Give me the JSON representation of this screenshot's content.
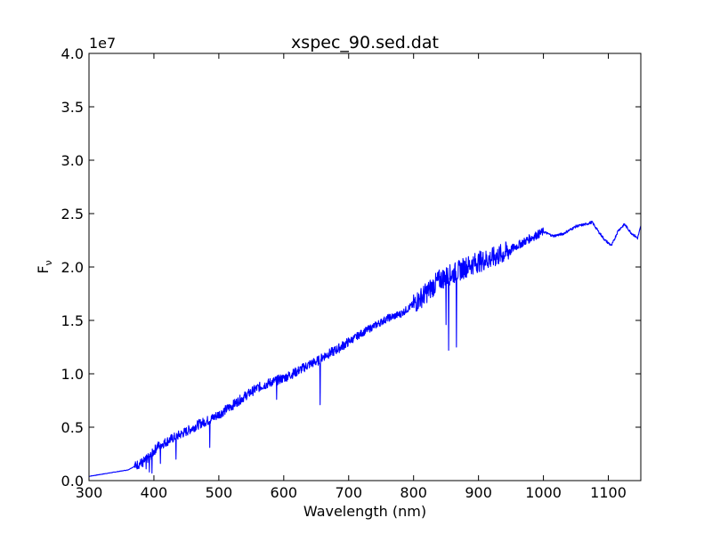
{
  "chart_data": {
    "type": "line",
    "title": "xspec_90.sed.dat",
    "xlabel": "Wavelength (nm)",
    "ylabel": "F",
    "ylabel_subscript": "ν",
    "xlim": [
      300,
      1150
    ],
    "ylim": [
      0,
      40000000
    ],
    "y_offset_label": "1e7",
    "x_ticks": [
      300,
      400,
      500,
      600,
      700,
      800,
      900,
      1000,
      1100
    ],
    "y_ticks": [
      0,
      5000000,
      10000000,
      15000000,
      20000000,
      25000000,
      30000000,
      35000000,
      40000000
    ],
    "y_tick_labels": [
      "0.0",
      "0.5",
      "1.0",
      "1.5",
      "2.0",
      "2.5",
      "3.0",
      "3.5",
      "4.0"
    ],
    "grid": false,
    "line_color": "#0000ff",
    "series": [
      {
        "x": [
          300,
          320,
          340,
          360,
          375,
          385,
          395,
          405,
          415,
          430,
          450,
          470,
          486,
          500,
          520,
          540,
          560,
          580,
          600,
          620,
          640,
          656,
          660,
          680,
          700,
          720,
          740,
          760,
          780,
          800,
          820,
          840,
          854,
          866,
          880,
          900,
          920,
          940,
          960,
          980,
          1000,
          1015,
          1030,
          1050,
          1065,
          1075,
          1085,
          1095,
          1105,
          1115,
          1125,
          1135,
          1145,
          1150
        ],
        "y": [
          400000,
          600000,
          800000,
          1000000,
          1500000,
          1800000,
          2300000,
          3200000,
          3500000,
          4000000,
          4600000,
          5300000,
          5700000,
          6200000,
          7000000,
          7900000,
          8700000,
          9200000,
          9600000,
          10200000,
          10900000,
          11300000,
          11600000,
          12200000,
          13000000,
          13800000,
          14500000,
          15200000,
          15600000,
          16500000,
          17600000,
          18800000,
          19200000,
          19500000,
          20000000,
          20500000,
          20800000,
          21300000,
          22000000,
          22700000,
          23300000,
          22900000,
          23100000,
          23800000,
          24000000,
          24200000,
          23300000,
          22500000,
          22000000,
          23400000,
          24000000,
          23200000,
          22700000,
          23800000
        ]
      }
    ],
    "dips": [
      {
        "x": 383,
        "y": 1300000
      },
      {
        "x": 388,
        "y": 1100000
      },
      {
        "x": 393,
        "y": 800000
      },
      {
        "x": 397,
        "y": 700000
      },
      {
        "x": 410,
        "y": 1600000
      },
      {
        "x": 434,
        "y": 2000000
      },
      {
        "x": 486,
        "y": 3100000
      },
      {
        "x": 589,
        "y": 7600000
      },
      {
        "x": 656,
        "y": 7100000
      },
      {
        "x": 850,
        "y": 14600000
      },
      {
        "x": 854,
        "y": 12200000
      },
      {
        "x": 866,
        "y": 12500000
      }
    ]
  }
}
